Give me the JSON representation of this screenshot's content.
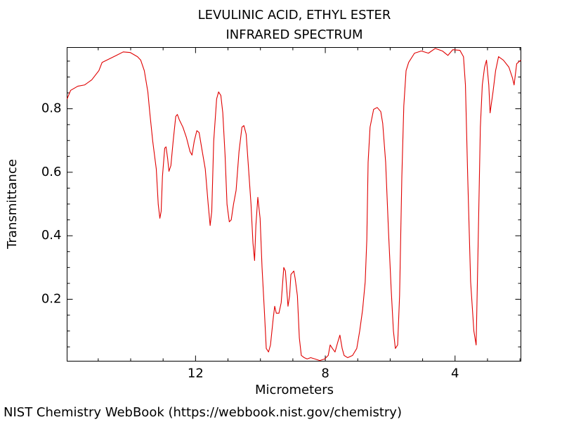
{
  "chart_data": {
    "type": "line",
    "title": "LEVULINIC ACID, ETHYL ESTER",
    "subtitle": "INFRARED SPECTRUM",
    "x_label": "Micrometers",
    "y_label": "Transmittance",
    "footer": "NIST Chemistry WebBook (https://webbook.nist.gov/chemistry)",
    "color": "#e00000",
    "xlim": [
      15.96,
      1.97
    ],
    "ylim": [
      0.005,
      0.993
    ],
    "xticks": [
      12,
      8,
      4
    ],
    "xminorticks": [
      15,
      14,
      13,
      11,
      10,
      9,
      7,
      6,
      5,
      3,
      2
    ],
    "yticks": [
      0.2,
      0.4,
      0.6,
      0.8
    ],
    "yminorticks": [
      0.05,
      0.1,
      0.15,
      0.25,
      0.3,
      0.35,
      0.45,
      0.5,
      0.55,
      0.65,
      0.7,
      0.75,
      0.85,
      0.9,
      0.95
    ],
    "x": [
      15.96,
      15.85,
      15.63,
      15.42,
      15.2,
      14.98,
      14.88,
      14.66,
      14.44,
      14.23,
      14.01,
      13.79,
      13.69,
      13.58,
      13.47,
      13.41,
      13.32,
      13.21,
      13.15,
      13.1,
      13.06,
      13.02,
      12.95,
      12.91,
      12.86,
      12.82,
      12.76,
      12.69,
      12.61,
      12.56,
      12.5,
      12.39,
      12.28,
      12.17,
      12.11,
      12.04,
      11.96,
      11.89,
      11.81,
      11.7,
      11.61,
      11.55,
      11.5,
      11.44,
      11.35,
      11.29,
      11.22,
      11.16,
      11.09,
      11.03,
      10.96,
      10.9,
      10.83,
      10.75,
      10.66,
      10.57,
      10.51,
      10.44,
      10.38,
      10.29,
      10.23,
      10.18,
      10.14,
      10.08,
      10.01,
      9.95,
      9.88,
      9.82,
      9.75,
      9.69,
      9.6,
      9.56,
      9.51,
      9.43,
      9.36,
      9.28,
      9.23,
      9.19,
      9.15,
      9.1,
      9.06,
      8.97,
      8.93,
      8.86,
      8.8,
      8.74,
      8.65,
      8.56,
      8.45,
      8.32,
      8.17,
      8.02,
      7.91,
      7.85,
      7.78,
      7.7,
      7.61,
      7.55,
      7.48,
      7.42,
      7.31,
      7.16,
      7.03,
      6.94,
      6.85,
      6.77,
      6.72,
      6.68,
      6.62,
      6.51,
      6.4,
      6.29,
      6.23,
      6.14,
      6.05,
      5.97,
      5.9,
      5.84,
      5.77,
      5.71,
      5.64,
      5.58,
      5.51,
      5.43,
      5.25,
      5.04,
      4.82,
      4.61,
      4.39,
      4.22,
      4.07,
      3.85,
      3.74,
      3.68,
      3.61,
      3.52,
      3.42,
      3.35,
      3.29,
      3.22,
      3.16,
      3.09,
      3.03,
      2.96,
      2.92,
      2.83,
      2.75,
      2.66,
      2.51,
      2.34,
      2.23,
      2.18,
      2.1,
      1.97
    ],
    "values": [
      0.831,
      0.858,
      0.871,
      0.875,
      0.891,
      0.92,
      0.946,
      0.957,
      0.968,
      0.979,
      0.977,
      0.964,
      0.953,
      0.92,
      0.853,
      0.787,
      0.698,
      0.61,
      0.499,
      0.455,
      0.477,
      0.587,
      0.676,
      0.68,
      0.643,
      0.603,
      0.621,
      0.698,
      0.776,
      0.782,
      0.765,
      0.742,
      0.709,
      0.665,
      0.654,
      0.698,
      0.731,
      0.725,
      0.676,
      0.61,
      0.499,
      0.432,
      0.477,
      0.698,
      0.831,
      0.853,
      0.842,
      0.787,
      0.654,
      0.499,
      0.444,
      0.45,
      0.499,
      0.543,
      0.665,
      0.742,
      0.747,
      0.72,
      0.632,
      0.499,
      0.377,
      0.322,
      0.432,
      0.521,
      0.455,
      0.3,
      0.167,
      0.045,
      0.034,
      0.056,
      0.145,
      0.178,
      0.156,
      0.156,
      0.189,
      0.3,
      0.289,
      0.233,
      0.178,
      0.211,
      0.278,
      0.289,
      0.266,
      0.211,
      0.078,
      0.023,
      0.016,
      0.012,
      0.016,
      0.012,
      0.007,
      0.012,
      0.023,
      0.056,
      0.045,
      0.034,
      0.067,
      0.087,
      0.045,
      0.023,
      0.016,
      0.023,
      0.045,
      0.1,
      0.167,
      0.255,
      0.388,
      0.632,
      0.742,
      0.798,
      0.804,
      0.791,
      0.754,
      0.632,
      0.41,
      0.233,
      0.1,
      0.045,
      0.056,
      0.211,
      0.587,
      0.809,
      0.92,
      0.946,
      0.975,
      0.982,
      0.975,
      0.99,
      0.982,
      0.968,
      0.986,
      0.984,
      0.964,
      0.875,
      0.587,
      0.255,
      0.1,
      0.056,
      0.366,
      0.742,
      0.875,
      0.931,
      0.953,
      0.875,
      0.787,
      0.853,
      0.92,
      0.964,
      0.953,
      0.931,
      0.897,
      0.875,
      0.942,
      0.953
    ]
  }
}
